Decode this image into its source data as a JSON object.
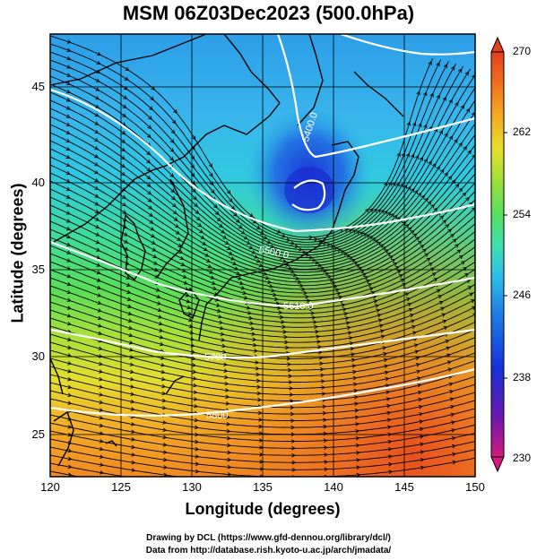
{
  "title": "MSM 06Z03Dec2023 (500.0hPa)",
  "xlabel": "Longitude (degrees)",
  "ylabel": "Latitude  (degrees)",
  "credit_line1": "Drawing by DCL (https://www.gfd-dennou.org/library/dcl/)",
  "credit_line2": "Data from http://database.rish.kyoto-u.ac.jp/arch/jmadata/",
  "x_ticks": [
    "120",
    "125",
    "130",
    "135",
    "140",
    "145",
    "150"
  ],
  "y_ticks": [
    "25",
    "30",
    "35",
    "40",
    "45"
  ],
  "colorbar": {
    "min": "230",
    "max": "270",
    "ticks": [
      "270",
      "262",
      "254",
      "246",
      "238",
      "230"
    ],
    "colors": [
      "#d61a7a",
      "#6a18b0",
      "#1530d8",
      "#1c7ce8",
      "#2ec0e8",
      "#3ee0b0",
      "#56e060",
      "#9be03a",
      "#e6df2c",
      "#f5a523",
      "#ef6a1e",
      "#e2401d"
    ]
  },
  "contour_labels": [
    "5400.0",
    "5500.0",
    "5610.0",
    "5700",
    "5800"
  ],
  "extent": {
    "lon": [
      120,
      150
    ],
    "lat": [
      22.5,
      48
    ]
  }
}
